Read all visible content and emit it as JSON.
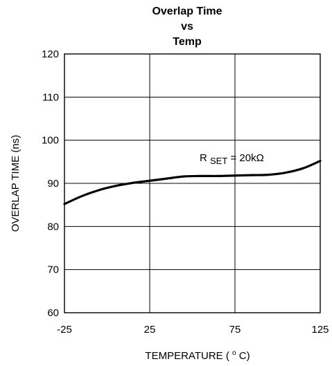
{
  "chart_data": {
    "type": "line",
    "title_lines": [
      "Overlap Time",
      "vs",
      "Temp"
    ],
    "xlabel": "TEMPERATURE (",
    "xlabel_sup": "o",
    "xlabel_unit": "C)",
    "ylabel": "OVERLAP TIME (ns)",
    "xlim": [
      -25,
      125
    ],
    "ylim": [
      60,
      120
    ],
    "x_ticks": [
      "-25",
      "25",
      "75",
      "125"
    ],
    "y_ticks": [
      "60",
      "70",
      "80",
      "90",
      "100",
      "110",
      "120"
    ],
    "grid": true,
    "annotation": {
      "prefix": "R",
      "sub": "SET",
      "suffix": " = 20kΩ"
    },
    "series": [
      {
        "x": [
          -25,
          -15,
          -5,
          5,
          15,
          25,
          35,
          45,
          55,
          65,
          75,
          85,
          95,
          105,
          115,
          125
        ],
        "y": [
          85.2,
          87.0,
          88.4,
          89.4,
          90.1,
          90.6,
          91.1,
          91.6,
          91.7,
          91.7,
          91.8,
          91.9,
          92.0,
          92.5,
          93.5,
          95.2
        ]
      }
    ]
  }
}
